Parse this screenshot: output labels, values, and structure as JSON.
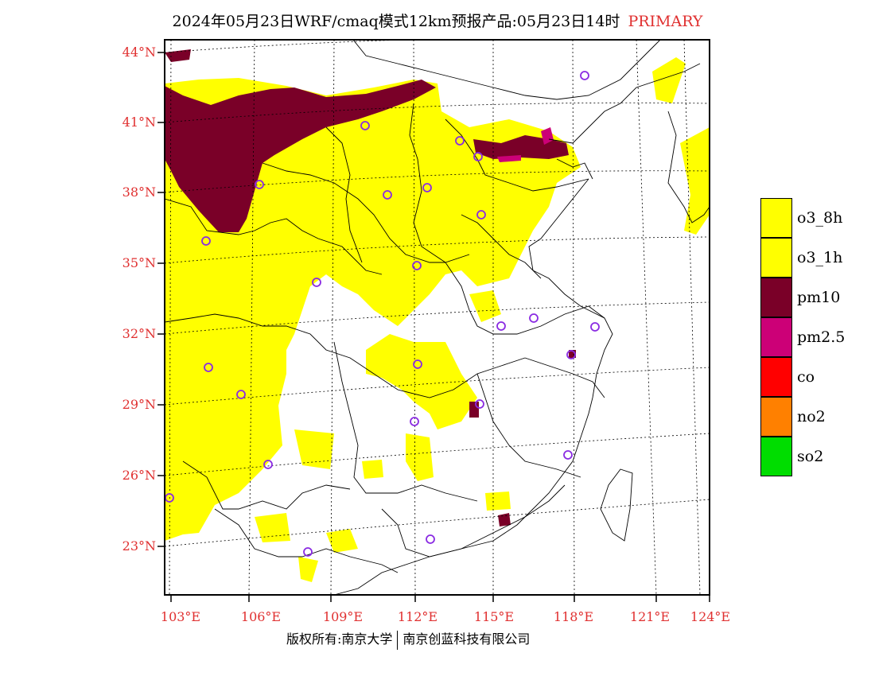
{
  "title": "2024年05月23日WRF/cmaq模式12km预报产品:05月23日14时",
  "title_tag": "PRIMARY",
  "latitude_labels": [
    "44°N",
    "41°N",
    "38°N",
    "35°N",
    "32°N",
    "29°N",
    "26°N",
    "23°N"
  ],
  "longitude_labels": [
    "103°E",
    "106°E",
    "109°E",
    "112°E",
    "115°E",
    "118°E",
    "121°E",
    "124°E"
  ],
  "legend": [
    {
      "label": "o3_8h",
      "color": "#ffff00"
    },
    {
      "label": "o3_1h",
      "color": "#ffff00"
    },
    {
      "label": "pm10",
      "color": "#7a0028"
    },
    {
      "label": "pm2.5",
      "color": "#cc0077"
    },
    {
      "label": "co",
      "color": "#ff0000"
    },
    {
      "label": "no2",
      "color": "#ff8000"
    },
    {
      "label": "so2",
      "color": "#00dd00"
    }
  ],
  "footer": {
    "left": "版权所有:南京大学",
    "right": "南京创蓝科技有限公司"
  },
  "colors": {
    "axis_label": "#e03030",
    "station_marker": "#8a2be2",
    "boundary": "#000000"
  },
  "icons": [
    "station-circle-icon"
  ]
}
